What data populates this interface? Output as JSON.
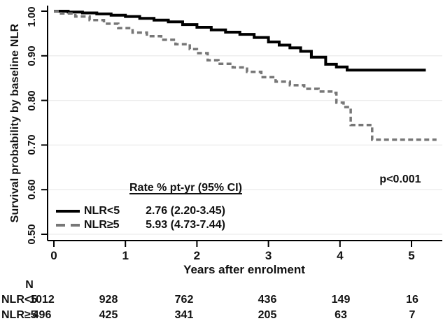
{
  "chart_data": {
    "type": "line",
    "subtype": "kaplan-meier-step",
    "title": "",
    "xlabel": "Years after enrolment",
    "ylabel": "Survival probability by baseline NLR",
    "xlim": [
      0,
      5.4
    ],
    "ylim": [
      0.5,
      1.0
    ],
    "x_ticks": [
      "0",
      "1",
      "2",
      "3",
      "4",
      "5"
    ],
    "y_ticks": [
      "1.00",
      "0.90",
      "0.80",
      "0.70",
      "0.60",
      "0.50"
    ],
    "grid": "faint horizontal gridlines at each 0.10",
    "legend_position": "inside lower-left",
    "legend_heading": "Rate % pt-yr (95% CI)",
    "p_value": "p<0.001",
    "series": [
      {
        "name": "NLR<5",
        "style": "solid",
        "color": "#000000",
        "rate_label": "2.76 (2.20-3.45)",
        "points": [
          [
            0,
            1.0
          ],
          [
            0.2,
            0.998
          ],
          [
            0.4,
            0.996
          ],
          [
            0.6,
            0.994
          ],
          [
            0.8,
            0.991
          ],
          [
            1.0,
            0.988
          ],
          [
            1.2,
            0.984
          ],
          [
            1.4,
            0.98
          ],
          [
            1.6,
            0.976
          ],
          [
            1.8,
            0.97
          ],
          [
            2.0,
            0.964
          ],
          [
            2.2,
            0.958
          ],
          [
            2.4,
            0.953
          ],
          [
            2.6,
            0.948
          ],
          [
            2.8,
            0.941
          ],
          [
            3.0,
            0.931
          ],
          [
            3.15,
            0.924
          ],
          [
            3.3,
            0.918
          ],
          [
            3.45,
            0.91
          ],
          [
            3.6,
            0.897
          ],
          [
            3.8,
            0.881
          ],
          [
            3.95,
            0.875
          ],
          [
            4.1,
            0.868
          ],
          [
            5.2,
            0.868
          ]
        ]
      },
      {
        "name": "NLR≥5",
        "style": "dashed",
        "color": "#777777",
        "rate_label": "5.93 (4.73-7.44)",
        "points": [
          [
            0,
            1.0
          ],
          [
            0.1,
            0.995
          ],
          [
            0.3,
            0.988
          ],
          [
            0.5,
            0.98
          ],
          [
            0.7,
            0.972
          ],
          [
            0.9,
            0.962
          ],
          [
            1.1,
            0.952
          ],
          [
            1.3,
            0.944
          ],
          [
            1.5,
            0.936
          ],
          [
            1.7,
            0.926
          ],
          [
            1.9,
            0.915
          ],
          [
            2.0,
            0.906
          ],
          [
            2.15,
            0.89
          ],
          [
            2.3,
            0.882
          ],
          [
            2.5,
            0.874
          ],
          [
            2.7,
            0.864
          ],
          [
            2.9,
            0.852
          ],
          [
            3.1,
            0.842
          ],
          [
            3.3,
            0.834
          ],
          [
            3.5,
            0.826
          ],
          [
            3.7,
            0.82
          ],
          [
            3.9,
            0.817
          ],
          [
            3.95,
            0.795
          ],
          [
            4.05,
            0.785
          ],
          [
            4.15,
            0.745
          ],
          [
            4.45,
            0.712
          ],
          [
            5.35,
            0.712
          ]
        ]
      }
    ]
  },
  "risk_table": {
    "header": "N",
    "rows": [
      {
        "label": "NLR<5",
        "counts": [
          "1012",
          "928",
          "762",
          "436",
          "149",
          "16"
        ]
      },
      {
        "label": "NLR≥5",
        "counts": [
          "496",
          "425",
          "341",
          "205",
          "63",
          "7"
        ]
      }
    ]
  }
}
